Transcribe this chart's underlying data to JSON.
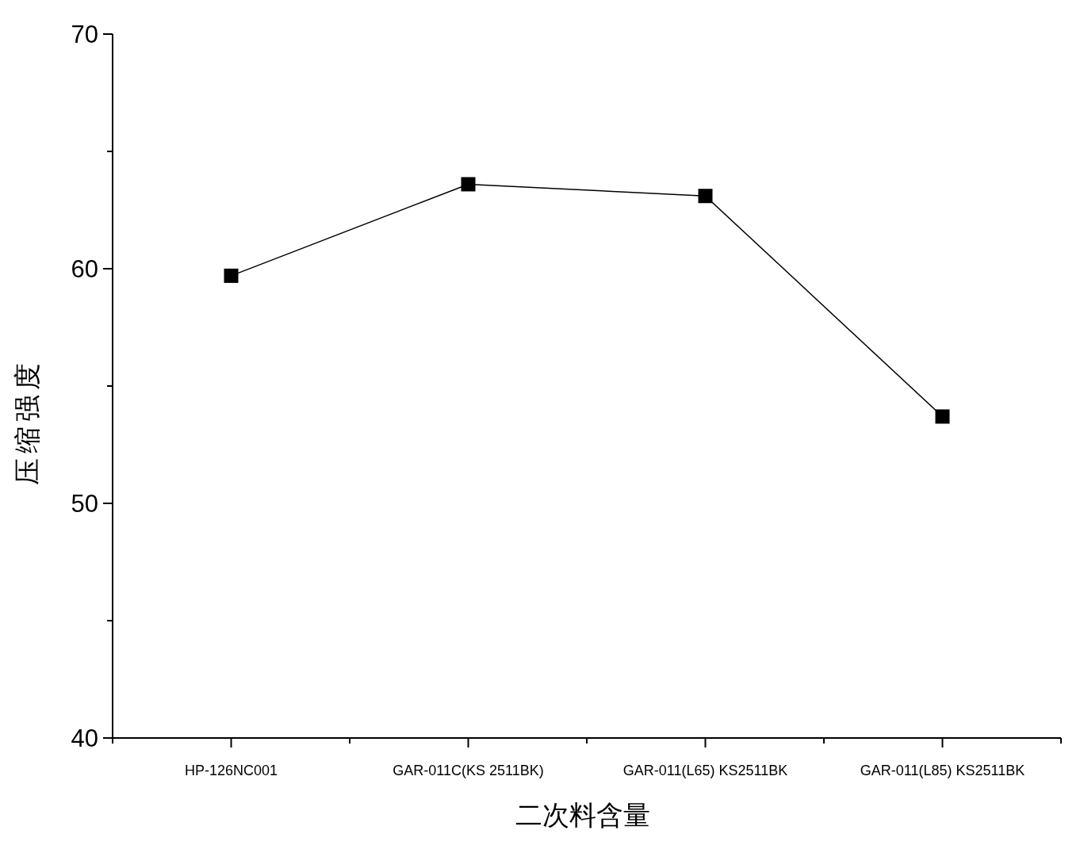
{
  "chart_data": {
    "type": "line",
    "xlabel": "二次料含量",
    "ylabel": "压缩强度",
    "categories": [
      "HP-126NC001",
      "GAR-011C(KS 2511BK)",
      "GAR-011(L65) KS2511BK",
      "GAR-011(L85) KS2511BK"
    ],
    "values": [
      59.7,
      63.6,
      63.1,
      53.7
    ],
    "color": "#000000",
    "ylim": [
      40,
      70
    ],
    "yticks": [
      40,
      {
        "value": 45,
        "label": null
      },
      50,
      {
        "value": 55,
        "label": null
      },
      60,
      {
        "value": 65,
        "label": null
      },
      70
    ],
    "marker": "square",
    "line_style": "solid",
    "grid": false,
    "legend": false
  }
}
